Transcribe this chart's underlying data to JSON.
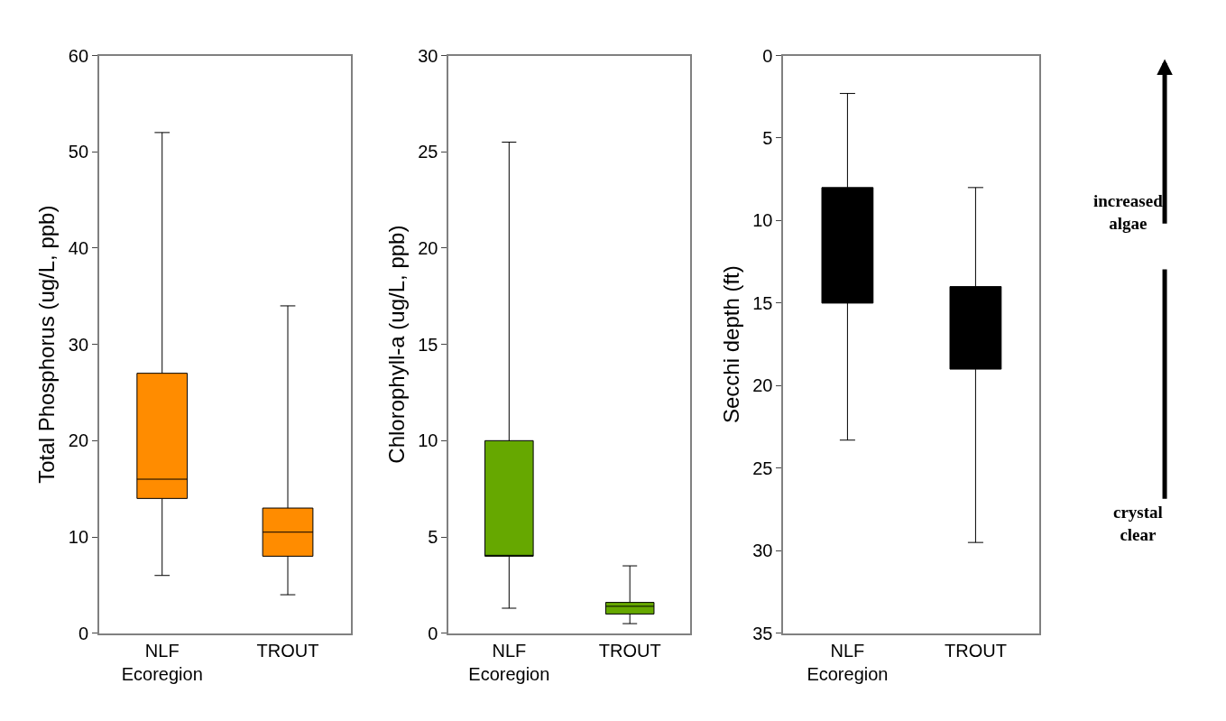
{
  "chart_data": [
    {
      "type": "box",
      "categories": [
        "NLF\nEcoregion",
        "TROUT"
      ],
      "ylabel": "Total Phosphorus (ug/L, ppb)",
      "ylim": [
        0,
        60
      ],
      "yticks": [
        0,
        10,
        20,
        30,
        40,
        50,
        60
      ],
      "color": "#ff8c00",
      "boxes": [
        {
          "low": 6,
          "q1": 14,
          "median": 16,
          "q3": 27,
          "high": 52
        },
        {
          "low": 4,
          "q1": 8,
          "median": 10.5,
          "q3": 13,
          "high": 34
        }
      ]
    },
    {
      "type": "box",
      "categories": [
        "NLF\nEcoregion",
        "TROUT"
      ],
      "ylabel": "Chlorophyll-a (ug/L, ppb)",
      "ylim": [
        0,
        30
      ],
      "yticks": [
        0,
        5,
        10,
        15,
        20,
        25,
        30
      ],
      "color": "#66a800",
      "boxes": [
        {
          "low": 1.3,
          "q1": 4,
          "median": 4,
          "q3": 10,
          "high": 25.5
        },
        {
          "low": 0.5,
          "q1": 1.0,
          "median": 1.4,
          "q3": 1.6,
          "high": 3.5
        }
      ]
    },
    {
      "type": "box",
      "categories": [
        "NLF\nEcoregion",
        "TROUT"
      ],
      "ylabel": "Secchi depth (ft)",
      "ylim": [
        35,
        0
      ],
      "yticks": [
        0,
        5,
        10,
        15,
        20,
        25,
        30,
        35
      ],
      "color": "#000000",
      "boxes": [
        {
          "low": 2.3,
          "q1": 8,
          "median": 8,
          "q3": 15,
          "high": 23.3
        },
        {
          "low": 8,
          "q1": 14,
          "median": 14,
          "q3": 19,
          "high": 29.5
        }
      ],
      "annotations": [
        "increased\nalgae",
        "crystal\nclear"
      ]
    }
  ]
}
